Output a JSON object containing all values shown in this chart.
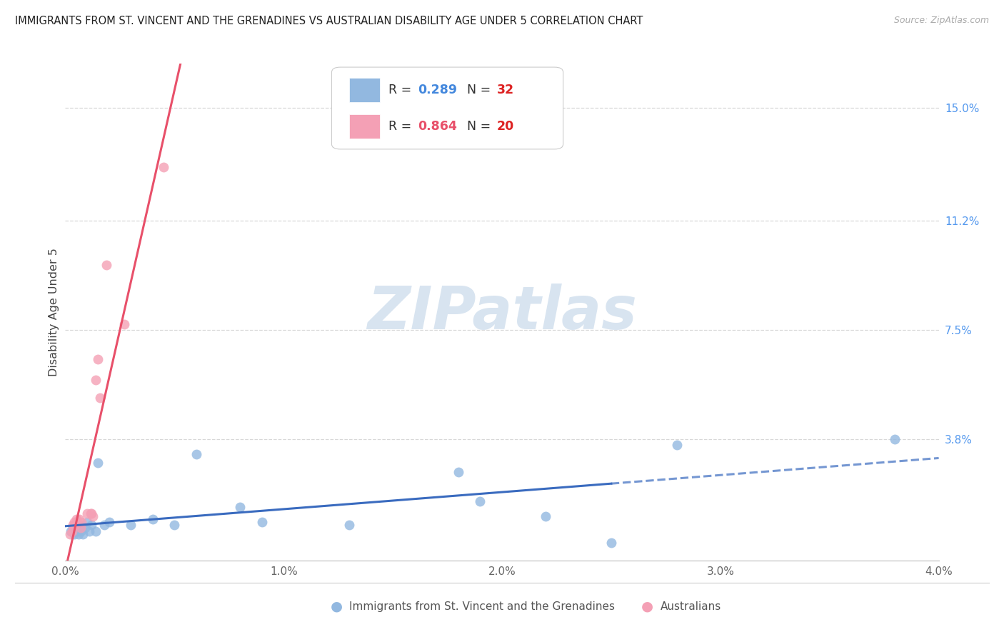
{
  "title": "IMMIGRANTS FROM ST. VINCENT AND THE GRENADINES VS AUSTRALIAN DISABILITY AGE UNDER 5 CORRELATION CHART",
  "source": "Source: ZipAtlas.com",
  "ylabel": "Disability Age Under 5",
  "xlim": [
    0.0,
    0.04
  ],
  "ylim": [
    -0.003,
    0.165
  ],
  "ytick_labels": [
    "15.0%",
    "11.2%",
    "7.5%",
    "3.8%"
  ],
  "ytick_values": [
    0.15,
    0.112,
    0.075,
    0.038
  ],
  "xtick_labels": [
    "0.0%",
    "1.0%",
    "2.0%",
    "3.0%",
    "4.0%"
  ],
  "xtick_values": [
    0.0,
    0.01,
    0.02,
    0.03,
    0.04
  ],
  "blue_color": "#92b8e0",
  "pink_color": "#f4a0b5",
  "blue_line_color": "#3a6bbf",
  "pink_line_color": "#e8506a",
  "r_color_blue": "#4488dd",
  "r_color_pink": "#e8506a",
  "n_color": "#dd2222",
  "watermark_color": "#d8e4f0",
  "grid_color": "#d8d8d8",
  "background_color": "#ffffff",
  "legend_r1": "0.289",
  "legend_n1": "32",
  "legend_r2": "0.864",
  "legend_n2": "20",
  "blue_x": [
    0.00025,
    0.00035,
    0.0004,
    0.00045,
    0.0005,
    0.00055,
    0.0006,
    0.00065,
    0.0007,
    0.00075,
    0.0008,
    0.0009,
    0.001,
    0.0011,
    0.0012,
    0.0014,
    0.0015,
    0.0018,
    0.002,
    0.003,
    0.004,
    0.005,
    0.006,
    0.008,
    0.009,
    0.013,
    0.018,
    0.019,
    0.022,
    0.025,
    0.028,
    0.038
  ],
  "blue_y": [
    0.007,
    0.008,
    0.006,
    0.009,
    0.007,
    0.008,
    0.006,
    0.009,
    0.007,
    0.008,
    0.006,
    0.008,
    0.01,
    0.007,
    0.009,
    0.007,
    0.03,
    0.009,
    0.01,
    0.009,
    0.011,
    0.009,
    0.033,
    0.015,
    0.01,
    0.009,
    0.027,
    0.017,
    0.012,
    0.003,
    0.036,
    0.038
  ],
  "pink_x": [
    0.0002,
    0.0003,
    0.00035,
    0.0004,
    0.00045,
    0.0005,
    0.00055,
    0.00065,
    0.0007,
    0.00075,
    0.001,
    0.00115,
    0.0012,
    0.00125,
    0.0014,
    0.0015,
    0.0016,
    0.0019,
    0.0027,
    0.0045
  ],
  "pink_y": [
    0.006,
    0.007,
    0.009,
    0.01,
    0.009,
    0.011,
    0.01,
    0.011,
    0.008,
    0.01,
    0.013,
    0.013,
    0.013,
    0.012,
    0.058,
    0.065,
    0.052,
    0.097,
    0.077,
    0.13
  ],
  "blue_line_solid_end": 0.025,
  "blue_line_x_start": 0.0,
  "blue_line_x_end": 0.04
}
